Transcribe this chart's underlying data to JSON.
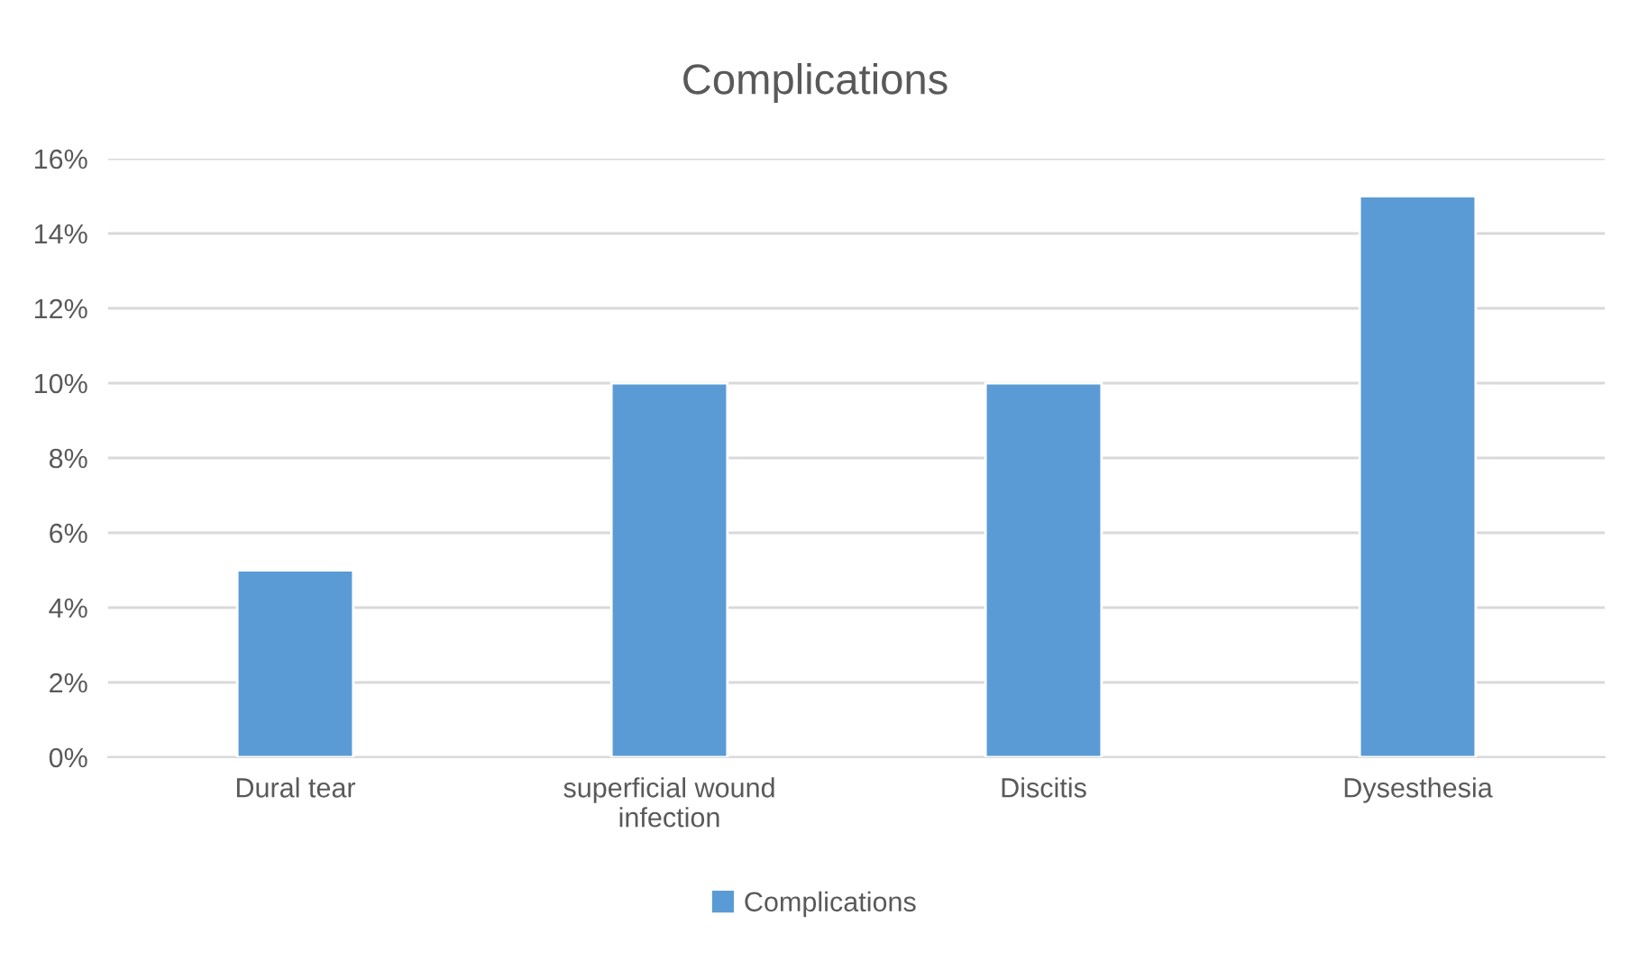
{
  "chart_data": {
    "type": "bar",
    "title": "Complications",
    "categories": [
      "Dural tear",
      "superficial wound\ninfection",
      "Discitis",
      "Dysesthesia"
    ],
    "series": [
      {
        "name": "Complications",
        "color": "#5b9bd5",
        "values": [
          5,
          10,
          10,
          15
        ]
      }
    ],
    "ylim": [
      0,
      16
    ],
    "yticks": [
      {
        "value": 0,
        "label": "0%"
      },
      {
        "value": 2,
        "label": "2%"
      },
      {
        "value": 4,
        "label": "4%"
      },
      {
        "value": 6,
        "label": "6%"
      },
      {
        "value": 8,
        "label": "8%"
      },
      {
        "value": 10,
        "label": "10%"
      },
      {
        "value": 12,
        "label": "12%"
      },
      {
        "value": 14,
        "label": "14%"
      },
      {
        "value": 16,
        "label": "16%"
      }
    ],
    "grid": "y",
    "legend": "bottom"
  }
}
